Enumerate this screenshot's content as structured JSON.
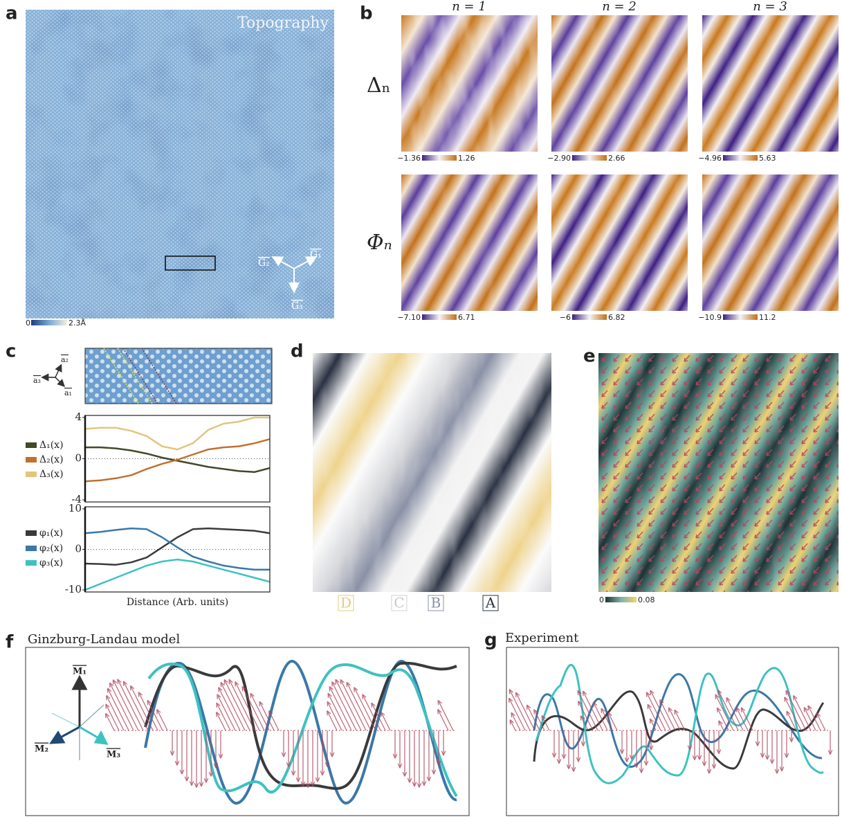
{
  "panel_labels": [
    "a",
    "b",
    "c",
    "d",
    "e",
    "f",
    "g"
  ],
  "panel_a": {
    "title": "Topography",
    "colorbar": [
      "0",
      "2.3Å"
    ],
    "vectors": [
      "G₁",
      "G₂",
      "G₃"
    ]
  },
  "panel_b": {
    "columns": [
      "n = 1",
      "n = 2",
      "n = 3"
    ],
    "rows": [
      "Δₙ",
      "Φₙ"
    ],
    "colorbars": [
      [
        "−1.36",
        "1.26"
      ],
      [
        "−2.90",
        "2.66"
      ],
      [
        "−4.96",
        "5.63"
      ],
      [
        "−7.10",
        "6.71"
      ],
      [
        "−6",
        "6.82"
      ],
      [
        "−10.9",
        "11.2"
      ]
    ]
  },
  "panel_c": {
    "lattice": [
      "a₁",
      "a₂",
      "a₃"
    ]
  },
  "chart_data": [
    {
      "type": "line",
      "x": [
        0,
        1,
        2,
        3,
        4,
        5,
        6,
        7,
        8,
        9,
        10,
        11,
        12
      ],
      "xlim": [
        0,
        12
      ],
      "ylim": [
        -4,
        4
      ],
      "yticks": [
        4,
        0,
        -4
      ],
      "series": [
        {
          "name": "Δ₁(x)",
          "color": "#3f4a27",
          "values": [
            1.1,
            1.1,
            1.0,
            0.8,
            0.5,
            0.1,
            -0.2,
            -0.5,
            -0.8,
            -1.0,
            -1.2,
            -1.3,
            -0.9
          ]
        },
        {
          "name": "Δ₂(x)",
          "color": "#c0702f",
          "values": [
            -2.2,
            -2.1,
            -1.9,
            -1.6,
            -1.0,
            -0.5,
            -0.1,
            0.4,
            0.9,
            1.1,
            1.2,
            1.5,
            1.9
          ]
        },
        {
          "name": "Δ₃(x)",
          "color": "#e3c57c",
          "values": [
            2.9,
            3.0,
            3.0,
            2.7,
            2.2,
            1.2,
            0.9,
            1.5,
            2.8,
            3.4,
            3.6,
            4.0,
            4.0
          ]
        }
      ]
    },
    {
      "type": "line",
      "x": [
        0,
        1,
        2,
        3,
        4,
        5,
        6,
        7,
        8,
        9,
        10,
        11,
        12
      ],
      "xlim": [
        0,
        12
      ],
      "ylim": [
        -10,
        10
      ],
      "yticks": [
        10,
        0,
        -10
      ],
      "xlabel": "Distance (Arb. units)",
      "series": [
        {
          "name": "φ₁(x)",
          "color": "#3a3a3c",
          "values": [
            -3.5,
            -3.6,
            -3.8,
            -3.2,
            -2.0,
            0.5,
            3.0,
            5.0,
            5.2,
            5.0,
            4.8,
            4.6,
            4.0
          ]
        },
        {
          "name": "φ₂(x)",
          "color": "#3a78a8",
          "values": [
            4.0,
            4.3,
            4.8,
            5.2,
            5.0,
            3.0,
            0.5,
            -1.8,
            -3.0,
            -4.0,
            -4.6,
            -5.0,
            -5.0
          ]
        },
        {
          "name": "φ₃(x)",
          "color": "#3ec1c1",
          "values": [
            -10,
            -8.5,
            -7,
            -5.5,
            -4,
            -3,
            -2.5,
            -3,
            -4,
            -5,
            -6,
            -7,
            -8
          ]
        }
      ]
    }
  ],
  "panel_d": {
    "labels": [
      "D",
      "C",
      "B",
      "A"
    ]
  },
  "panel_e": {
    "colorbar": [
      "0",
      "0.08"
    ]
  },
  "panel_f": {
    "title": "Ginzburg-Landau model",
    "vectors": [
      "M₁",
      "M₂",
      "M₃"
    ]
  },
  "panel_g": {
    "title": "Experiment"
  }
}
